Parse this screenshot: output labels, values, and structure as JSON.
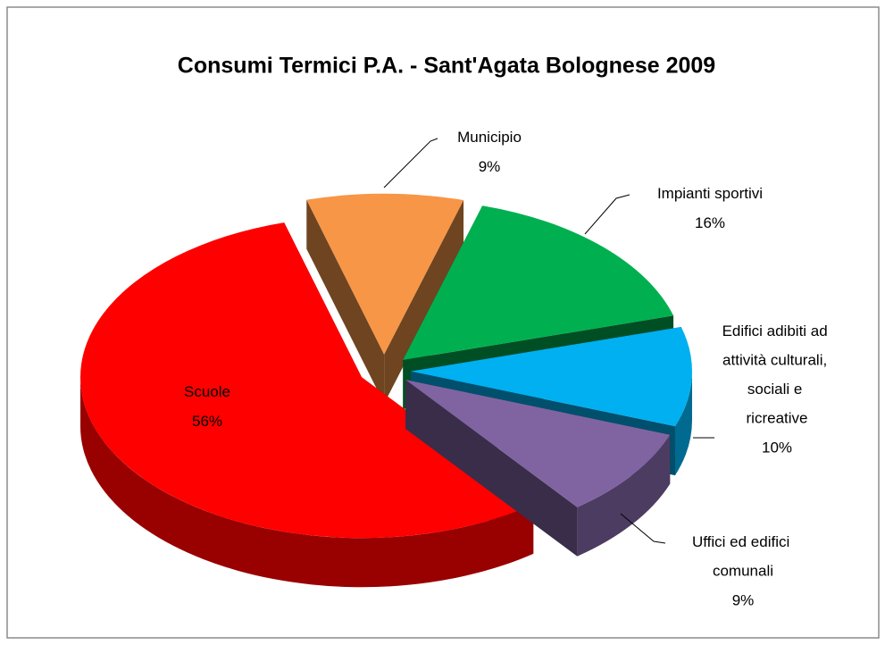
{
  "chart_data": {
    "type": "pie",
    "title": "Consumi Termici P.A. - Sant'Agata Bolognese 2009",
    "categories": [
      "Municipio",
      "Impianti sportivi",
      "Edifici adibiti ad attività culturali, sociali e ricreative",
      "Uffici ed edifici comunali",
      "Scuole"
    ],
    "values": [
      9,
      16,
      10,
      9,
      56
    ],
    "value_labels": [
      "9%",
      "16%",
      "10%",
      "9%",
      "56%"
    ],
    "colors": [
      "#f79646",
      "#00b050",
      "#00b0f0",
      "#8064a2",
      "#ff0000"
    ]
  }
}
